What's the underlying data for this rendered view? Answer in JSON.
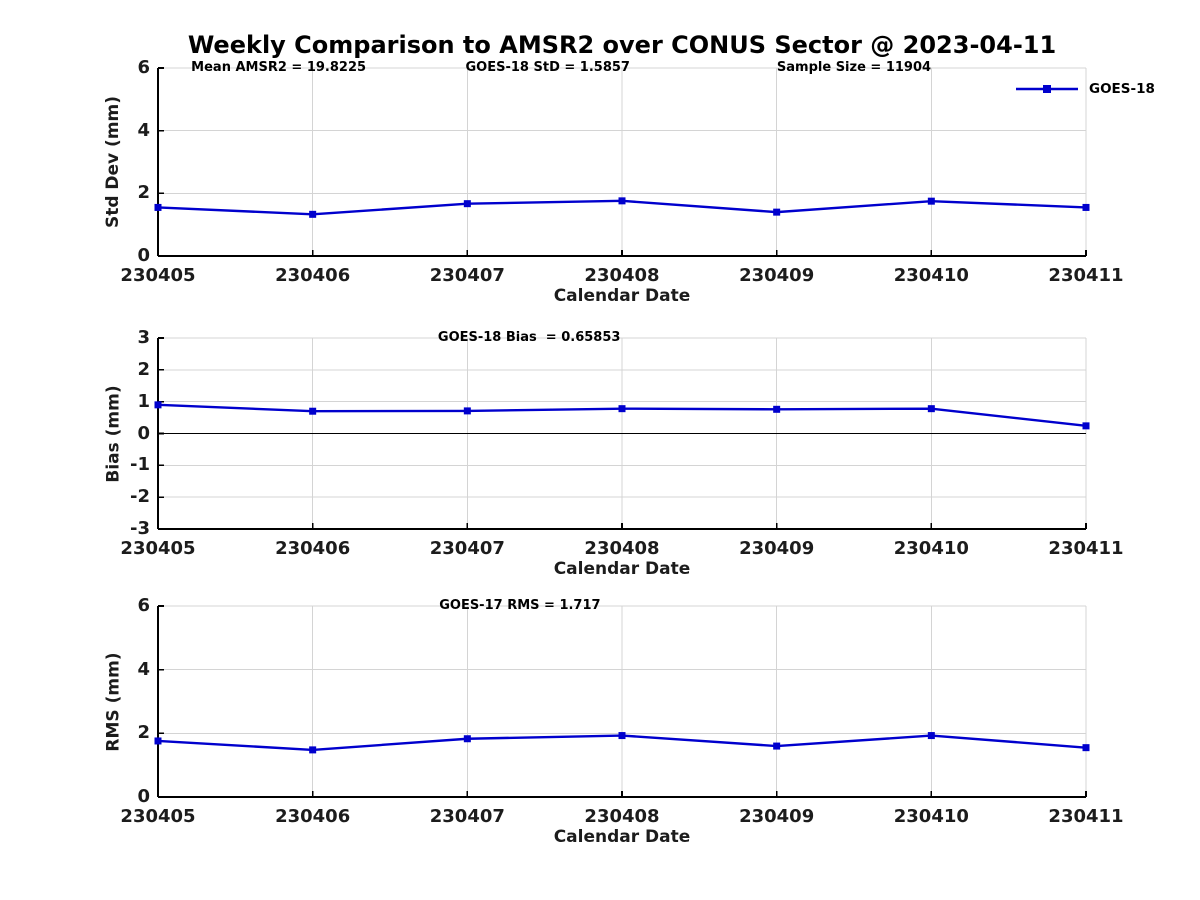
{
  "title": "Weekly Comparison to AMSR2 over CONUS Sector @ 2023-04-11",
  "colors": {
    "line": "#0000cd",
    "marker": "#0000cd",
    "grid": "#d4d4d4",
    "axis": "#000000",
    "zero_line": "#000000",
    "text": "#1c1c1c",
    "background": "#ffffff"
  },
  "legend": {
    "label": "GOES-18",
    "position": "top-right",
    "marker": "filled-square"
  },
  "chart_data": [
    {
      "panel": "std-dev",
      "type": "line",
      "ylabel": "Std Dev (mm)",
      "xlabel": "Calendar Date",
      "ylim": [
        0,
        6
      ],
      "yticks": [
        0,
        2,
        4,
        6
      ],
      "grid": true,
      "zero_line": false,
      "show_legend": true,
      "categories": [
        "230405",
        "230406",
        "230407",
        "230408",
        "230409",
        "230410",
        "230411"
      ],
      "series": [
        {
          "name": "GOES-18",
          "values": [
            1.55,
            1.33,
            1.67,
            1.76,
            1.4,
            1.75,
            1.55
          ]
        }
      ],
      "annotations": [
        {
          "text": "Mean AMSR2 = 19.8225",
          "xfrac": 0.13
        },
        {
          "text": "GOES-18 StD = 1.5857",
          "xfrac": 0.42
        },
        {
          "text": "Sample Size = 11904",
          "xfrac": 0.75
        }
      ]
    },
    {
      "panel": "bias",
      "type": "line",
      "ylabel": "Bias (mm)",
      "xlabel": "Calendar Date",
      "ylim": [
        -3,
        3
      ],
      "yticks": [
        -3,
        -2,
        -1,
        0,
        1,
        2,
        3
      ],
      "grid": true,
      "zero_line": true,
      "show_legend": false,
      "categories": [
        "230405",
        "230406",
        "230407",
        "230408",
        "230409",
        "230410",
        "230411"
      ],
      "series": [
        {
          "name": "GOES-18",
          "values": [
            0.9,
            0.7,
            0.71,
            0.78,
            0.76,
            0.78,
            0.24
          ]
        }
      ],
      "annotations": [
        {
          "text": "GOES-18 Bias  = 0.65853",
          "xfrac": 0.4
        }
      ]
    },
    {
      "panel": "rms",
      "type": "line",
      "ylabel": "RMS (mm)",
      "xlabel": "Calendar Date",
      "ylim": [
        0,
        6
      ],
      "yticks": [
        0,
        2,
        4,
        6
      ],
      "grid": true,
      "zero_line": false,
      "show_legend": false,
      "categories": [
        "230405",
        "230406",
        "230407",
        "230408",
        "230409",
        "230410",
        "230411"
      ],
      "series": [
        {
          "name": "GOES-17 RMS",
          "values": [
            1.76,
            1.48,
            1.83,
            1.93,
            1.6,
            1.93,
            1.55
          ]
        }
      ],
      "annotations": [
        {
          "text": "GOES-17 RMS = 1.717",
          "xfrac": 0.39
        }
      ]
    }
  ]
}
